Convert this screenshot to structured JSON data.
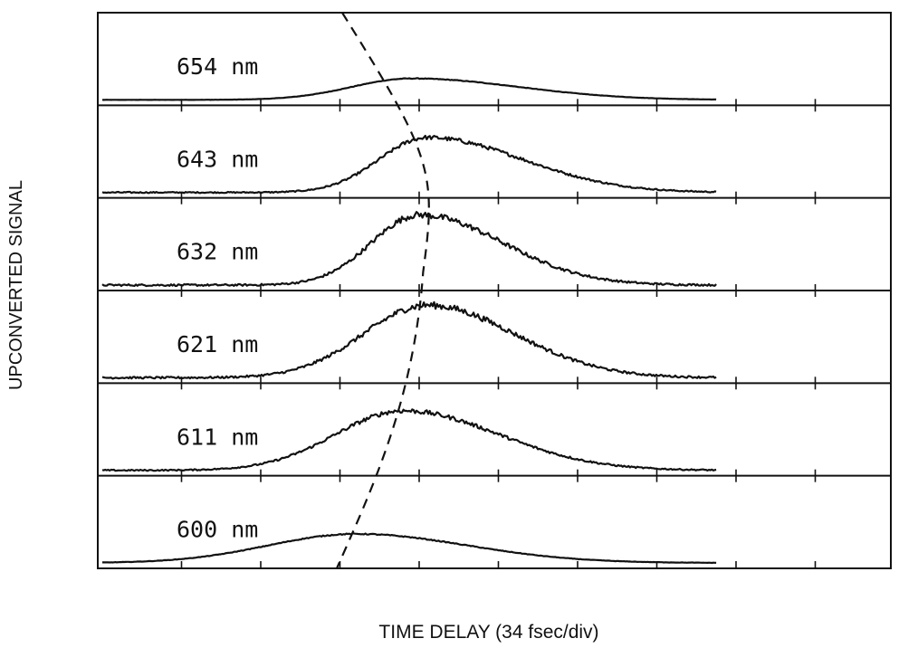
{
  "chart_data": {
    "type": "line",
    "xlabel": "TIME DELAY (34 fsec/div)",
    "ylabel": "UPCONVERTED SIGNAL",
    "x_unit_per_div_fs": 34,
    "x_divisions": 10,
    "grid": false,
    "panels": [
      {
        "label": "654 nm",
        "peak_x_div": 3.9,
        "amplitude": 0.28,
        "rise_width": 0.75,
        "decay_width": 1.35,
        "noise": 0.01
      },
      {
        "label": "643 nm",
        "peak_x_div": 4.1,
        "amplitude": 0.72,
        "rise_width": 0.6,
        "decay_width": 1.2,
        "noise": 0.025
      },
      {
        "label": "632 nm",
        "peak_x_div": 4.0,
        "amplitude": 0.92,
        "rise_width": 0.6,
        "decay_width": 1.05,
        "noise": 0.03
      },
      {
        "label": "621 nm",
        "peak_x_div": 4.1,
        "amplitude": 0.95,
        "rise_width": 0.8,
        "decay_width": 1.1,
        "noise": 0.03
      },
      {
        "label": "611 nm",
        "peak_x_div": 3.8,
        "amplitude": 0.78,
        "rise_width": 0.85,
        "decay_width": 1.2,
        "noise": 0.025
      },
      {
        "label": "600 nm",
        "peak_x_div": 3.2,
        "amplitude": 0.38,
        "rise_width": 1.1,
        "decay_width": 1.4,
        "noise": 0.012
      }
    ],
    "dashed_curve": {
      "description": "peak delay trace across wavelengths",
      "x_div_top": 3.0,
      "x_div_bottom": 3.0,
      "x_div_mid": 4.05
    }
  }
}
